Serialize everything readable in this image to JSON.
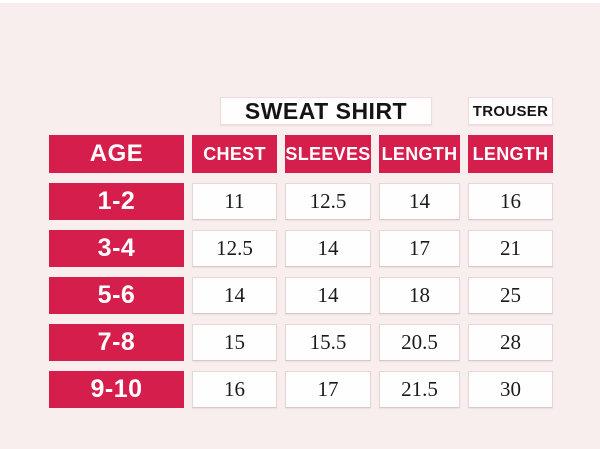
{
  "page": {
    "background_color": "#f9eeee",
    "accent_color": "#d61e4c"
  },
  "table": {
    "group_headers": [
      {
        "label": "SWEAT SHIRT"
      },
      {
        "label": "TROUSER"
      }
    ],
    "columns": [
      "AGE",
      "CHEST",
      "SLEEVES",
      "LENGTH",
      "LENGTH"
    ],
    "rows": [
      {
        "age": "1-2",
        "values": [
          "11",
          "12.5",
          "14",
          "16"
        ]
      },
      {
        "age": "3-4",
        "values": [
          "12.5",
          "14",
          "17",
          "21"
        ]
      },
      {
        "age": "5-6",
        "values": [
          "14",
          "14",
          "18",
          "25"
        ]
      },
      {
        "age": "7-8",
        "values": [
          "15",
          "15.5",
          "20.5",
          "28"
        ]
      },
      {
        "age": "9-10",
        "values": [
          "16",
          "17",
          "21.5",
          "30"
        ]
      }
    ]
  }
}
